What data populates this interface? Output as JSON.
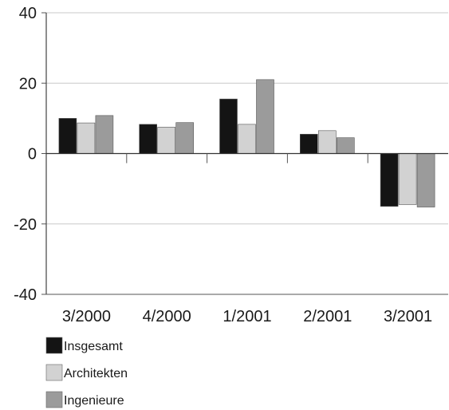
{
  "chart_data": {
    "type": "bar",
    "categories": [
      "3/2000",
      "4/2000",
      "1/2001",
      "2/2001",
      "3/2001"
    ],
    "series": [
      {
        "name": "Insgesamt",
        "color": "#141414",
        "values": [
          10,
          8.3,
          15.5,
          5.5,
          -15
        ]
      },
      {
        "name": "Architekten",
        "color": "#d2d2d2",
        "values": [
          8.7,
          7.5,
          8.3,
          6.5,
          -14.5
        ]
      },
      {
        "name": "Ingenieure",
        "color": "#9b9b9b",
        "values": [
          10.8,
          8.8,
          21,
          4.5,
          -15.2
        ]
      }
    ],
    "ylim": [
      -40,
      40
    ],
    "yticks": [
      40,
      20,
      0,
      -20,
      -40
    ],
    "ytick_labels": [
      "40",
      "20",
      "0",
      "-20",
      "-40"
    ],
    "grid": true,
    "legend_position": "bottom-left"
  }
}
